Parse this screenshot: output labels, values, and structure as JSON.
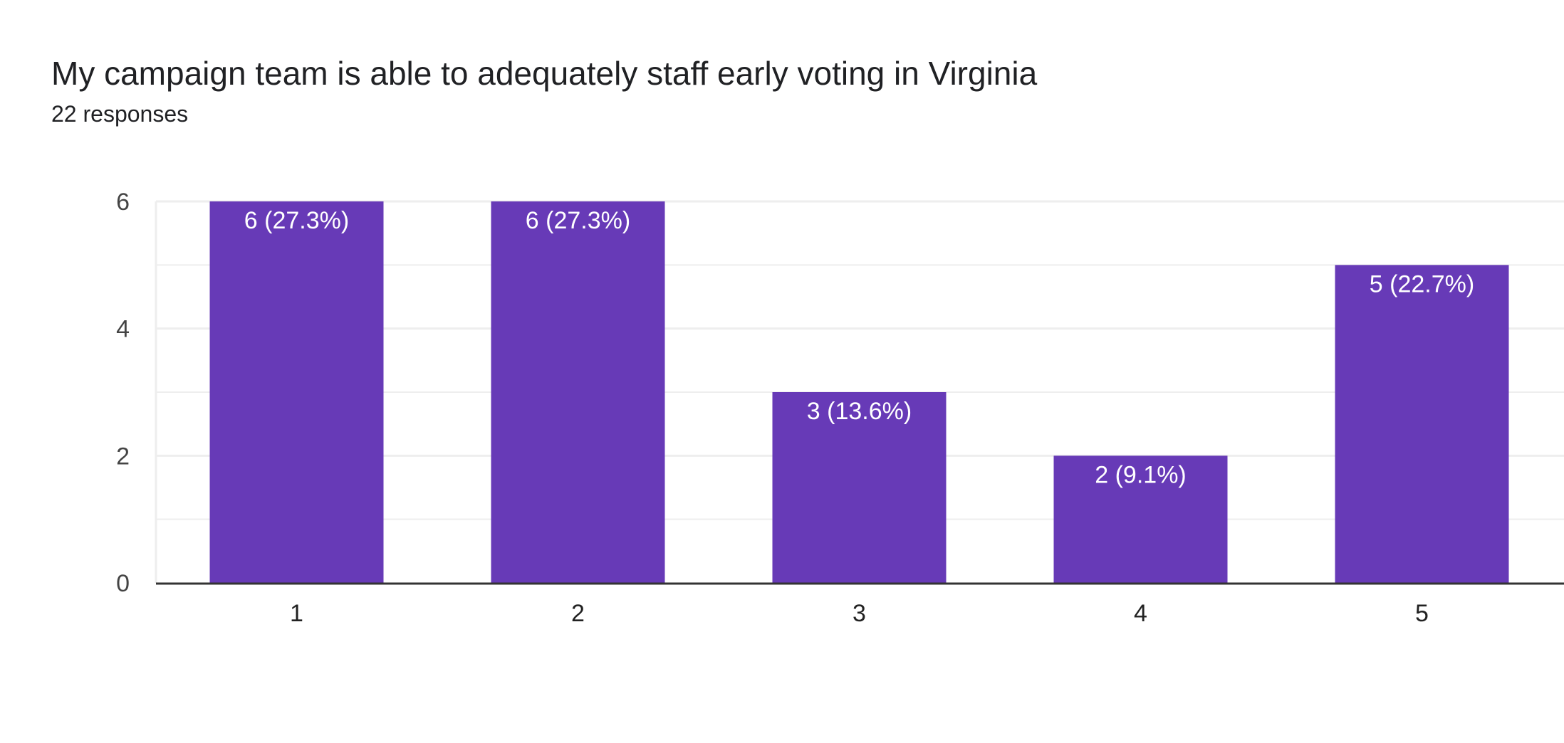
{
  "header": {
    "title": "My campaign team is able to adequately staff early voting in Virginia",
    "subtitle": "22 responses"
  },
  "colors": {
    "bar": "#673AB7",
    "grid": "#EEEEEE",
    "baseline": "#333333"
  },
  "chart_data": {
    "type": "bar",
    "title": "My campaign team is able to adequately staff early voting in Virginia",
    "subtitle": "22 responses",
    "categories": [
      "1",
      "2",
      "3",
      "4",
      "5"
    ],
    "values": [
      6,
      6,
      3,
      2,
      5
    ],
    "data_labels": [
      "6 (27.3%)",
      "6 (27.3%)",
      "3 (13.6%)",
      "2 (9.1%)",
      "5 (22.7%)"
    ],
    "ylim": [
      0,
      6
    ],
    "yticks": [
      0,
      2,
      4,
      6
    ],
    "minor_gridlines": [
      1,
      3,
      5
    ],
    "grid": true,
    "legend": "none"
  }
}
